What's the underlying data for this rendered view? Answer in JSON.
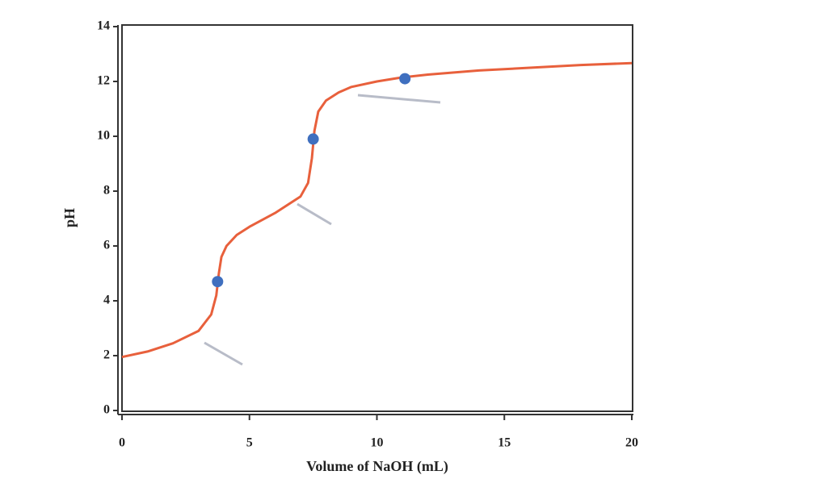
{
  "chart_data": {
    "type": "line",
    "xlabel": "Volume of NaOH (mL)",
    "ylabel": "pH",
    "xlim": [
      0,
      20
    ],
    "xticks": [
      0,
      5,
      10,
      15,
      20
    ],
    "ylim": [
      0,
      14
    ],
    "yticks": [
      0,
      2,
      4,
      6,
      8,
      10,
      12,
      14
    ],
    "series": [
      {
        "style": "line",
        "color": "#e8603c",
        "x": [
          0,
          1,
          2,
          3,
          3.5,
          3.7,
          3.8,
          3.9,
          4.1,
          4.5,
          5,
          6,
          7,
          7.3,
          7.45,
          7.55,
          7.7,
          8,
          8.5,
          9,
          10,
          11,
          12,
          14,
          16,
          18,
          20
        ],
        "values": [
          1.95,
          2.15,
          2.45,
          2.9,
          3.5,
          4.2,
          5.0,
          5.6,
          6.0,
          6.4,
          6.7,
          7.2,
          7.8,
          8.3,
          9.2,
          10.2,
          10.9,
          11.3,
          11.6,
          11.8,
          12.0,
          12.15,
          12.25,
          12.4,
          12.5,
          12.6,
          12.67
        ]
      },
      {
        "style": "marker",
        "color": "#3f6fbf",
        "x": [
          3.75,
          7.5,
          11.1
        ],
        "values": [
          4.7,
          9.9,
          12.1
        ]
      }
    ]
  }
}
